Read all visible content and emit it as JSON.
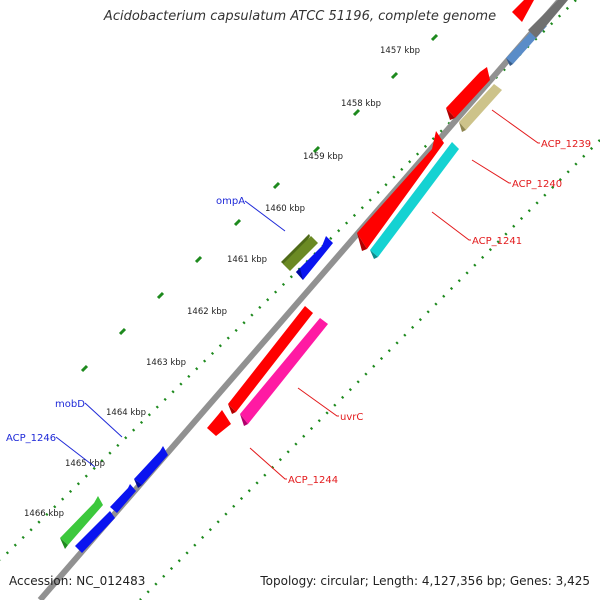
{
  "title": "Acidobacterium capsulatum ATCC 51196, complete genome",
  "footer": {
    "accession": "Accession: NC_012483",
    "summary": "Topology: circular; Length: 4,127,356 bp; Genes: 3,425"
  },
  "ticks": [
    "1457 kbp",
    "1458 kbp",
    "1459 kbp",
    "1460 kbp",
    "1461 kbp",
    "1462 kbp",
    "1463 kbp",
    "1464 kbp",
    "1465 kbp",
    "1466 kbp"
  ],
  "gene_labels": {
    "acp_1239": "ACP_1239",
    "acp_1240": "ACP_1240",
    "acp_1241": "ACP_1241",
    "uvrc": "uvrC",
    "acp_1244": "ACP_1244",
    "ompa": "ompA",
    "mobd": "mobD",
    "acp_1246": "ACP_1246"
  },
  "colors": {
    "backbone": "#8c8c8c",
    "dots": "#1e8a1e",
    "red": "#ff0000",
    "cyan": "#14d2d2",
    "magenta": "#ff1aa3",
    "olive": "#6b8a23",
    "blue": "#0a14f0",
    "green": "#3cc83c",
    "khaki": "#cdc38a",
    "steel": "#5a8cc8"
  }
}
